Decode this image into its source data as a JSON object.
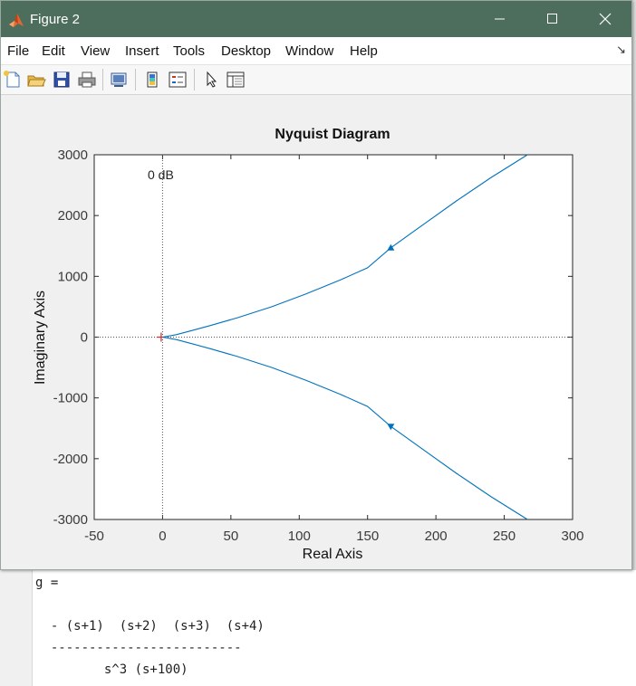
{
  "command_window": {
    "var_line": "g =",
    "numerator": "  - (s+1)  (s+2)  (s+3)  (s+4)",
    "dash_line": "  -------------------------",
    "denominator": "         s^3 (s+100)"
  },
  "figure": {
    "title": "Figure 2",
    "menus": [
      "File",
      "Edit",
      "View",
      "Insert",
      "Tools",
      "Desktop",
      "Window",
      "Help"
    ],
    "toolbar_icons": [
      "new-figure-icon",
      "open-file-icon",
      "save-icon",
      "print-icon",
      "link-plot-icon",
      "insert-colorbar-icon",
      "insert-legend-icon",
      "edit-plot-cursor-icon",
      "property-inspector-icon"
    ]
  },
  "chart_data": {
    "type": "line",
    "title": "Nyquist Diagram",
    "xlabel": "Real Axis",
    "ylabel": "Imaginary Axis",
    "xlim": [
      -50,
      300
    ],
    "ylim": [
      -3000,
      3000
    ],
    "xticks": [
      -50,
      0,
      50,
      100,
      150,
      200,
      250,
      300
    ],
    "yticks": [
      3000,
      2000,
      1000,
      0,
      -1000,
      -2000,
      -3000
    ],
    "annotation": "0 dB",
    "critical_point": [
      -1,
      0
    ],
    "grid": false,
    "color": "#0072bd",
    "series": [
      {
        "x": [
          0,
          10,
          20,
          35,
          55,
          80,
          105,
          130,
          150,
          167,
          190,
          215,
          240,
          267
        ],
        "y": [
          0,
          40,
          100,
          190,
          320,
          500,
          710,
          940,
          1140,
          1470,
          1840,
          2240,
          2620,
          3000
        ]
      },
      {
        "x": [
          0,
          10,
          20,
          35,
          55,
          80,
          105,
          130,
          150,
          167,
          190,
          215,
          240,
          267
        ],
        "y": [
          0,
          -40,
          -100,
          -190,
          -320,
          -500,
          -710,
          -940,
          -1140,
          -1470,
          -1840,
          -2240,
          -2620,
          -3000
        ]
      }
    ],
    "arrows": [
      {
        "x": 167,
        "y": 1470,
        "direction": "up"
      },
      {
        "x": 167,
        "y": -1470,
        "direction": "down"
      }
    ]
  }
}
